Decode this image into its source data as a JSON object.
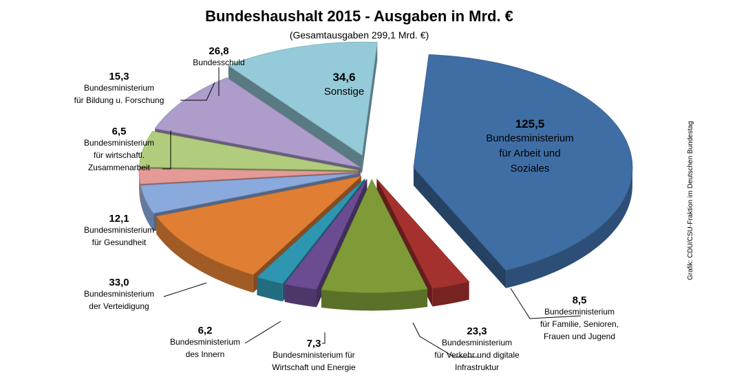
{
  "chart_data": {
    "type": "pie",
    "title": "Bundeshaushalt 2015 - Ausgaben in Mrd. €",
    "subtitle": "(Gesamtausgaben 299,1 Mrd. €)",
    "slices": [
      {
        "value": 125.5,
        "value_label": "125,5",
        "label_lines": [
          "Bundesministerium",
          "für Arbeit und",
          "Soziales"
        ],
        "color": "#3f6ea5"
      },
      {
        "value": 8.5,
        "value_label": "8,5",
        "label_lines": [
          "Bundesministerium",
          "für Familie, Senioren,",
          "Frauen und Jugend"
        ],
        "color": "#a5312e"
      },
      {
        "value": 23.3,
        "value_label": "23,3",
        "label_lines": [
          "Bundesministerium",
          "für Verkehr und digitale",
          "Infrastruktur"
        ],
        "color": "#7e9b37"
      },
      {
        "value": 7.3,
        "value_label": "7,3",
        "label_lines": [
          "Bundesministerium für",
          "Wirtschaft  und Energie"
        ],
        "color": "#6b4c93"
      },
      {
        "value": 6.2,
        "value_label": "6,2",
        "label_lines": [
          "Bundesministerium",
          "des Innern"
        ],
        "color": "#2f96b1"
      },
      {
        "value": 33.0,
        "value_label": "33,0",
        "label_lines": [
          "Bundesministerium",
          "der Verteidigung"
        ],
        "color": "#e07f34"
      },
      {
        "value": 12.1,
        "value_label": "12,1",
        "label_lines": [
          "Bundesministerium",
          "für Gesundheit"
        ],
        "color": "#8aa9dc"
      },
      {
        "value": 6.5,
        "value_label": "6,5",
        "label_lines": [
          "Bundesministerium",
          "für wirtschaftl.",
          "Zusammenarbeit"
        ],
        "color": "#e49a96"
      },
      {
        "value": 15.3,
        "value_label": "15,3",
        "label_lines": [
          "Bundesministerium",
          "für Bildung u. Forschung"
        ],
        "color": "#b1cc7c"
      },
      {
        "value": 26.8,
        "value_label": "26,8",
        "label_lines": [
          "Bundesschuld"
        ],
        "color": "#ae9dcb"
      },
      {
        "value": 34.6,
        "value_label": "34,6",
        "label_lines": [
          "Sonstige"
        ],
        "color": "#95cbd9"
      }
    ],
    "credit": "Grafik: CDU/CSU-Fraktion im Deutschen Bundestag"
  }
}
